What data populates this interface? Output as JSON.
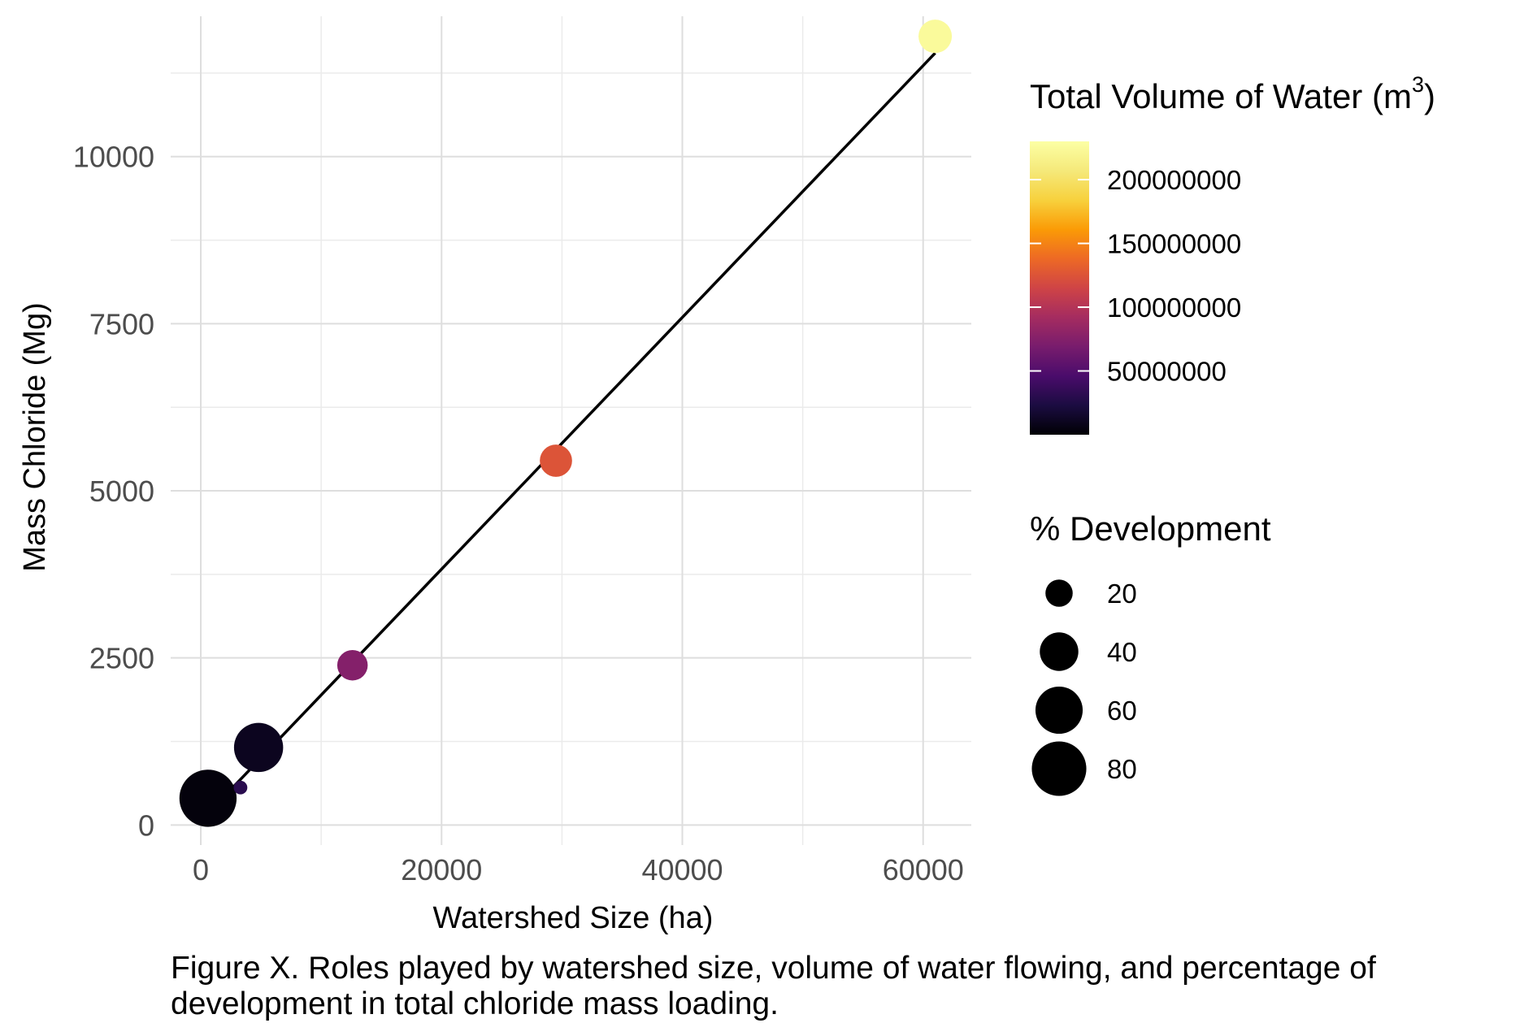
{
  "chart_data": {
    "type": "scatter",
    "xlabel": "Watershed Size (ha)",
    "ylabel": "Mass Chloride (Mg)",
    "xlim": [
      -2500,
      64000
    ],
    "ylim": [
      -300,
      12100
    ],
    "x_ticks": [
      0,
      20000,
      40000,
      60000
    ],
    "x_tick_labels": [
      "0",
      "20000",
      "40000",
      "60000"
    ],
    "y_ticks": [
      0,
      2500,
      5000,
      7500,
      10000
    ],
    "y_tick_labels": [
      "0",
      "2500",
      "5000",
      "7500",
      "10000"
    ],
    "grid": true,
    "points": [
      {
        "x": 600,
        "y": 400,
        "development": 88,
        "volume": 3000000
      },
      {
        "x": 3300,
        "y": 560,
        "development": 5,
        "volume": 30000000
      },
      {
        "x": 4800,
        "y": 1160,
        "development": 65,
        "volume": 10000000
      },
      {
        "x": 12600,
        "y": 2390,
        "development": 25,
        "volume": 75000000
      },
      {
        "x": 29500,
        "y": 5450,
        "development": 28,
        "volume": 125000000
      },
      {
        "x": 61000,
        "y": 11800,
        "development": 30,
        "volume": 225000000
      }
    ],
    "trend_line": {
      "x": [
        1800,
        61000
      ],
      "y": [
        400,
        11550
      ],
      "color": "#000000"
    },
    "color_legend": {
      "title": "Total Volume of Water (m",
      "title_sup": "3",
      "title_end": ")",
      "min": 0,
      "max": 230000000,
      "ticks": [
        50000000,
        100000000,
        150000000,
        200000000
      ],
      "tick_labels": [
        "50000000",
        "100000000",
        "150000000",
        "200000000"
      ],
      "colormap": "inferno"
    },
    "size_legend": {
      "title": "% Development",
      "values": [
        20,
        40,
        60,
        80
      ],
      "labels": [
        "20",
        "40",
        "60",
        "80"
      ]
    },
    "legend_position": "right"
  },
  "caption": {
    "line1": "Figure X. Roles played by watershed size, volume of water flowing, and percentage of",
    "line2": "development in total chloride mass loading."
  }
}
